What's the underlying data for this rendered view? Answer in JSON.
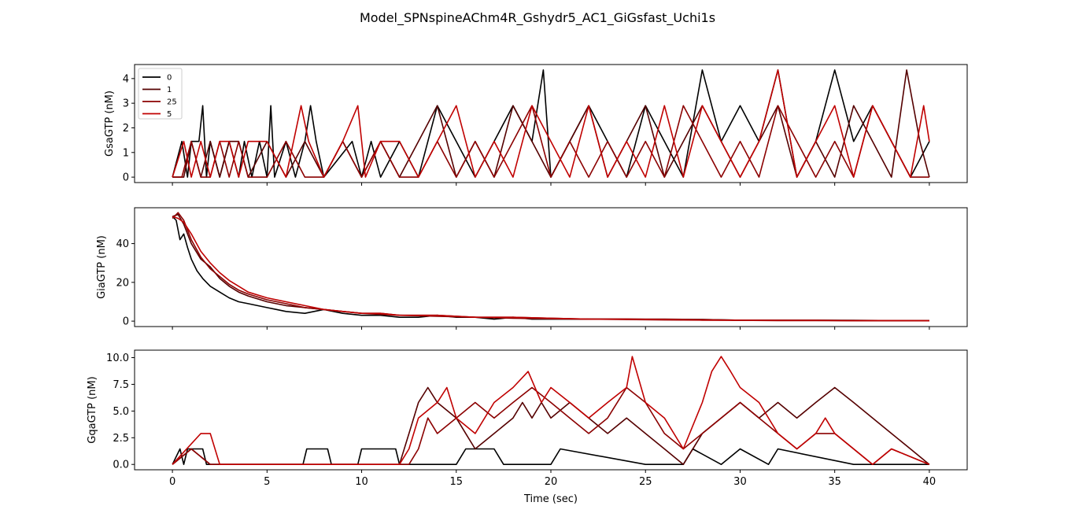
{
  "title": "Model_SPNspineAChm4R_Gshydr5_AC1_GiGsfast_Uchi1s",
  "colors": {
    "0": "#000000",
    "1": "#550000",
    "25": "#8b0000",
    "5": "#c00000"
  },
  "chart_data": [
    {
      "type": "line",
      "ylabel": "GsaGTP (nM)",
      "xlabel": "",
      "xlim": [
        -2,
        42
      ],
      "ylim": [
        -0.22,
        4.57
      ],
      "yticks": [
        0,
        1,
        2,
        3,
        4
      ],
      "xticks": [
        0,
        5,
        10,
        15,
        20,
        25,
        30,
        35,
        40
      ],
      "show_xticklabels": false,
      "legend": {
        "placement": "top-left",
        "entries": [
          "0",
          "1",
          "25",
          "5"
        ]
      },
      "series": [
        {
          "name": "0",
          "color": "#000000",
          "x": [
            0,
            0.5,
            0.8,
            1.0,
            1.2,
            1.4,
            1.6,
            1.8,
            2.0,
            2.5,
            3.0,
            3.5,
            3.8,
            4.2,
            4.6,
            5.0,
            5.2,
            5.4,
            6.0,
            6.5,
            7.0,
            7.3,
            7.6,
            8.0,
            9.5,
            10.0,
            10.5,
            11.0,
            12.0,
            13.0,
            14.0,
            15.0,
            16.0,
            17.0,
            18.0,
            19.0,
            19.6,
            20.0,
            21.0,
            22.0,
            23.0,
            24.0,
            25.0,
            26.0,
            27.0,
            28.0,
            29.0,
            30.0,
            31.0,
            32.0,
            33.0,
            34.0,
            35.0,
            36.0,
            37.0,
            38.0,
            39.0,
            40.0
          ],
          "y": [
            0,
            1.45,
            0,
            1.45,
            1.45,
            1.45,
            2.9,
            0,
            1.45,
            0,
            1.45,
            0,
            1.45,
            0,
            1.45,
            0,
            2.9,
            0,
            1.45,
            0,
            1.45,
            2.9,
            1.45,
            0,
            1.45,
            0,
            1.45,
            0,
            1.45,
            0,
            2.9,
            1.45,
            0,
            1.45,
            2.9,
            1.45,
            4.35,
            0,
            1.45,
            2.9,
            1.45,
            0,
            2.9,
            1.45,
            0,
            4.35,
            1.45,
            2.9,
            1.45,
            4.35,
            0,
            1.45,
            4.35,
            1.45,
            2.9,
            1.45,
            0,
            1.45
          ]
        },
        {
          "name": "1",
          "color": "#550000",
          "x": [
            0,
            0.6,
            1.0,
            1.5,
            2.0,
            2.5,
            3.0,
            3.5,
            4.0,
            5.0,
            6.0,
            7.0,
            8.0,
            9.0,
            10.0,
            11.0,
            12.0,
            13.0,
            14.0,
            15.0,
            16.0,
            17.0,
            18.0,
            19.0,
            20.0,
            21.0,
            22.0,
            23.0,
            24.0,
            25.0,
            26.0,
            27.0,
            28.0,
            29.0,
            30.0,
            31.0,
            32.0,
            33.0,
            34.0,
            35.0,
            36.0,
            37.0,
            38.0,
            38.8,
            39.5,
            40.0
          ],
          "y": [
            0,
            0,
            1.45,
            0,
            1.45,
            0,
            1.45,
            1.45,
            0,
            1.45,
            0,
            1.45,
            0,
            1.45,
            0,
            1.45,
            0,
            1.45,
            2.9,
            0,
            1.45,
            0,
            2.9,
            1.45,
            0,
            1.45,
            2.9,
            0,
            1.45,
            2.9,
            0,
            1.45,
            2.9,
            1.45,
            0,
            1.45,
            2.9,
            0,
            1.45,
            0,
            2.9,
            1.45,
            0,
            4.35,
            1.45,
            0
          ]
        },
        {
          "name": "25",
          "color": "#8b0000",
          "x": [
            0,
            0.5,
            1.0,
            1.5,
            2.0,
            2.5,
            3.0,
            3.5,
            4.0,
            5.0,
            6.0,
            7.0,
            8.0,
            9.0,
            10.0,
            11.0,
            12.0,
            13.0,
            14.0,
            15.0,
            16.0,
            17.0,
            18.0,
            19.0,
            20.0,
            21.0,
            22.0,
            23.0,
            24.0,
            25.0,
            26.0,
            27.0,
            28.0,
            29.0,
            30.0,
            31.0,
            32.0,
            33.0,
            34.0,
            35.0,
            36.0,
            37.0,
            38.0,
            39.0,
            40.0
          ],
          "y": [
            0,
            0,
            1.45,
            0,
            0,
            1.45,
            0,
            1.45,
            0,
            0,
            1.45,
            0,
            0,
            1.45,
            0,
            1.45,
            0,
            0,
            1.45,
            0,
            1.45,
            0,
            1.45,
            2.9,
            0,
            1.45,
            0,
            1.45,
            0,
            1.45,
            0,
            2.9,
            1.45,
            0,
            1.45,
            0,
            2.9,
            1.45,
            0,
            1.45,
            0,
            2.9,
            1.45,
            0,
            0
          ]
        },
        {
          "name": "5",
          "color": "#c00000",
          "x": [
            0,
            0.6,
            1.0,
            1.5,
            2.0,
            2.5,
            3.0,
            3.5,
            4.0,
            5.0,
            6.0,
            6.8,
            7.2,
            8.0,
            9.0,
            9.8,
            10.2,
            11.0,
            12.0,
            13.0,
            14.0,
            15.0,
            16.0,
            17.0,
            18.0,
            19.0,
            20.0,
            21.0,
            22.0,
            23.0,
            24.0,
            25.0,
            26.0,
            27.0,
            28.0,
            29.0,
            30.0,
            31.0,
            32.0,
            33.0,
            34.0,
            35.0,
            36.0,
            37.0,
            38.0,
            39.0,
            39.7,
            40.0
          ],
          "y": [
            0,
            1.45,
            0,
            1.45,
            0,
            1.45,
            1.45,
            0,
            1.45,
            1.45,
            0,
            2.9,
            1.45,
            0,
            1.45,
            2.9,
            0,
            1.45,
            1.45,
            0,
            1.45,
            2.9,
            0,
            1.45,
            0,
            2.9,
            1.45,
            0,
            2.9,
            0,
            1.45,
            0,
            2.9,
            0,
            2.9,
            1.45,
            0,
            1.45,
            4.35,
            0,
            1.45,
            2.9,
            0,
            2.9,
            1.45,
            0,
            2.9,
            1.45
          ]
        }
      ]
    },
    {
      "type": "line",
      "ylabel": "GiaGTP (nM)",
      "xlabel": "",
      "xlim": [
        -2,
        42
      ],
      "ylim": [
        -2.8,
        58.5
      ],
      "yticks": [
        0,
        20,
        40
      ],
      "xticks": [
        0,
        5,
        10,
        15,
        20,
        25,
        30,
        35,
        40
      ],
      "show_xticklabels": false,
      "series": [
        {
          "name": "0",
          "color": "#000000",
          "x": [
            0,
            0.2,
            0.4,
            0.6,
            0.8,
            1.0,
            1.3,
            1.6,
            2.0,
            2.5,
            3.0,
            3.5,
            4.0,
            4.5,
            5.0,
            5.5,
            6.0,
            7.0,
            8.0,
            9.0,
            10.0,
            11.0,
            12.0,
            13.0,
            14.0,
            15.0,
            16.0,
            17.0,
            18.0,
            19.0,
            20.0,
            22.0,
            24.0,
            26.0,
            28.0,
            30.0,
            32.0,
            34.0,
            36.0,
            38.0,
            40.0
          ],
          "y": [
            54,
            52,
            42,
            45,
            38,
            32,
            26,
            22,
            18,
            15,
            12,
            10,
            9,
            8,
            7,
            6,
            5,
            4,
            6,
            4,
            3,
            3,
            2,
            2,
            3,
            2,
            2,
            1,
            2,
            1,
            1,
            1,
            1,
            0.8,
            0.8,
            0.5,
            0.5,
            0.5,
            0.4,
            0.3,
            0.3
          ]
        },
        {
          "name": "1",
          "color": "#550000",
          "x": [
            0,
            0.3,
            0.6,
            1.0,
            1.5,
            2.0,
            2.5,
            3.0,
            3.5,
            4.0,
            5.0,
            6.0,
            7.0,
            8.0,
            9.0,
            10.0,
            11.0,
            12.0,
            14.0,
            16.0,
            18.0,
            20.0,
            22.0,
            24.0,
            26.0,
            28.0,
            30.0,
            32.0,
            34.0,
            36.0,
            38.0,
            40.0
          ],
          "y": [
            54,
            55,
            50,
            40,
            32,
            28,
            22,
            18,
            15,
            13,
            10,
            8,
            7,
            6,
            5,
            4,
            4,
            3,
            3,
            2,
            2,
            1.5,
            1,
            1,
            1,
            0.8,
            0.5,
            0.5,
            0.4,
            0.3,
            0.3,
            0.2
          ]
        },
        {
          "name": "25",
          "color": "#8b0000",
          "x": [
            0,
            0.3,
            0.6,
            1.0,
            1.5,
            2.0,
            2.5,
            3.0,
            3.5,
            4.0,
            5.0,
            6.0,
            7.0,
            8.0,
            9.0,
            10.0,
            11.0,
            12.0,
            14.0,
            16.0,
            18.0,
            20.0,
            22.0,
            24.0,
            26.0,
            28.0,
            30.0,
            32.0,
            34.0,
            36.0,
            38.0,
            40.0
          ],
          "y": [
            53,
            56,
            52,
            42,
            33,
            27,
            23,
            19,
            16,
            14,
            11,
            9,
            7,
            6,
            5,
            4,
            3.5,
            3,
            2.5,
            2,
            1.5,
            1.2,
            1,
            0.8,
            0.6,
            0.5,
            0.4,
            0.3,
            0.3,
            0.2,
            0.2,
            0.2
          ]
        },
        {
          "name": "5",
          "color": "#c00000",
          "x": [
            0,
            0.3,
            0.6,
            1.0,
            1.5,
            2.0,
            2.5,
            3.0,
            3.5,
            4.0,
            5.0,
            6.0,
            7.0,
            8.0,
            9.0,
            10.0,
            11.0,
            12.0,
            14.0,
            16.0,
            18.0,
            20.0,
            22.0,
            24.0,
            26.0,
            28.0,
            30.0,
            32.0,
            34.0,
            36.0,
            38.0,
            40.0
          ],
          "y": [
            54,
            53,
            51,
            45,
            36,
            30,
            25,
            21,
            18,
            15,
            12,
            10,
            8,
            6,
            5,
            4,
            4,
            3,
            3,
            2,
            2,
            1.5,
            1,
            1,
            0.8,
            0.6,
            0.5,
            0.4,
            0.4,
            0.3,
            0.3,
            0.2
          ]
        }
      ]
    },
    {
      "type": "line",
      "ylabel": "GqaGTP (nM)",
      "xlabel": "Time (sec)",
      "xlim": [
        -2,
        42
      ],
      "ylim": [
        -0.5,
        10.7
      ],
      "yticks": [
        0.0,
        2.5,
        5.0,
        7.5,
        10.0
      ],
      "ytick_labels": [
        "0.0",
        "2.5",
        "5.0",
        "7.5",
        "10.0"
      ],
      "xticks": [
        0,
        5,
        10,
        15,
        20,
        25,
        30,
        35,
        40
      ],
      "xtick_labels": [
        "0",
        "5",
        "10",
        "15",
        "20",
        "25",
        "30",
        "35",
        "40"
      ],
      "show_xticklabels": true,
      "series": [
        {
          "name": "0",
          "color": "#000000",
          "x": [
            0,
            0.4,
            0.6,
            0.8,
            1.0,
            1.6,
            1.8,
            2.0,
            6.9,
            7.1,
            8.2,
            8.4,
            9.8,
            10.0,
            11.8,
            12.0,
            15.0,
            15.5,
            17.0,
            17.5,
            20.0,
            20.5,
            25.0,
            27.0,
            27.5,
            29.0,
            30.0,
            31.5,
            32.0,
            36.0,
            37.0,
            40.0
          ],
          "y": [
            0,
            1.45,
            0,
            1.45,
            1.45,
            1.45,
            0,
            0,
            0,
            1.45,
            1.45,
            0,
            0,
            1.45,
            1.45,
            0,
            0,
            1.45,
            1.45,
            0,
            0,
            1.45,
            0,
            0,
            1.45,
            0,
            1.45,
            0,
            1.45,
            0,
            0,
            0
          ]
        },
        {
          "name": "1",
          "color": "#550000",
          "x": [
            0,
            1.0,
            2.0,
            12.0,
            12.5,
            13.0,
            13.5,
            14.0,
            15.0,
            15.5,
            16.0,
            17.0,
            18.0,
            18.5,
            19.0,
            19.5,
            20.0,
            21.0,
            22.0,
            23.0,
            24.0,
            25.0,
            26.0,
            27.0,
            28.0,
            29.0,
            30.0,
            31.0,
            32.0,
            33.0,
            34.0,
            35.0,
            36.0,
            37.0,
            38.0,
            39.0,
            40.0
          ],
          "y": [
            0,
            1.45,
            0,
            0,
            2.9,
            5.8,
            7.2,
            5.8,
            4.35,
            2.9,
            1.45,
            2.9,
            4.35,
            5.8,
            4.35,
            5.8,
            4.35,
            5.8,
            4.35,
            2.9,
            4.35,
            2.9,
            1.45,
            0,
            2.9,
            4.35,
            5.8,
            4.35,
            5.8,
            4.35,
            5.8,
            7.2,
            5.8,
            4.35,
            2.9,
            1.45,
            0
          ]
        },
        {
          "name": "25",
          "color": "#8b0000",
          "x": [
            0,
            1.0,
            2.0,
            12.5,
            13.0,
            13.5,
            14.0,
            15.0,
            16.0,
            17.0,
            18.0,
            19.0,
            20.0,
            21.0,
            22.0,
            23.0,
            24.0,
            25.0,
            26.0,
            27.0,
            28.0,
            29.0,
            30.0,
            31.0,
            32.0,
            33.0,
            34.0,
            35.0,
            36.0,
            37.0,
            38.0,
            40.0
          ],
          "y": [
            0,
            1.45,
            0,
            0,
            1.45,
            4.35,
            2.9,
            4.35,
            5.8,
            4.35,
            5.8,
            7.2,
            5.8,
            4.35,
            2.9,
            4.35,
            7.2,
            5.8,
            2.9,
            1.45,
            2.9,
            4.35,
            5.8,
            4.35,
            2.9,
            1.45,
            2.9,
            2.9,
            1.45,
            0,
            1.45,
            0
          ]
        },
        {
          "name": "5",
          "color": "#c00000",
          "x": [
            0,
            1.5,
            2.0,
            2.5,
            12.0,
            12.5,
            13.0,
            14.0,
            14.5,
            15.0,
            16.0,
            17.0,
            18.0,
            18.8,
            19.5,
            20.0,
            21.0,
            22.0,
            23.0,
            24.0,
            24.3,
            25.0,
            26.0,
            27.0,
            28.0,
            28.5,
            29.0,
            29.5,
            30.0,
            31.0,
            32.0,
            33.0,
            34.0,
            34.5,
            35.0,
            36.0,
            37.0,
            38.0,
            40.0
          ],
          "y": [
            0,
            2.9,
            2.9,
            0,
            0,
            1.45,
            4.35,
            5.8,
            7.2,
            4.35,
            2.9,
            5.8,
            7.2,
            8.7,
            5.8,
            7.2,
            5.8,
            4.35,
            5.8,
            7.2,
            10.1,
            5.8,
            4.35,
            1.45,
            5.8,
            8.7,
            10.1,
            8.7,
            7.2,
            5.8,
            2.9,
            1.45,
            2.9,
            4.35,
            2.9,
            1.45,
            0,
            1.45,
            0
          ]
        }
      ]
    }
  ]
}
